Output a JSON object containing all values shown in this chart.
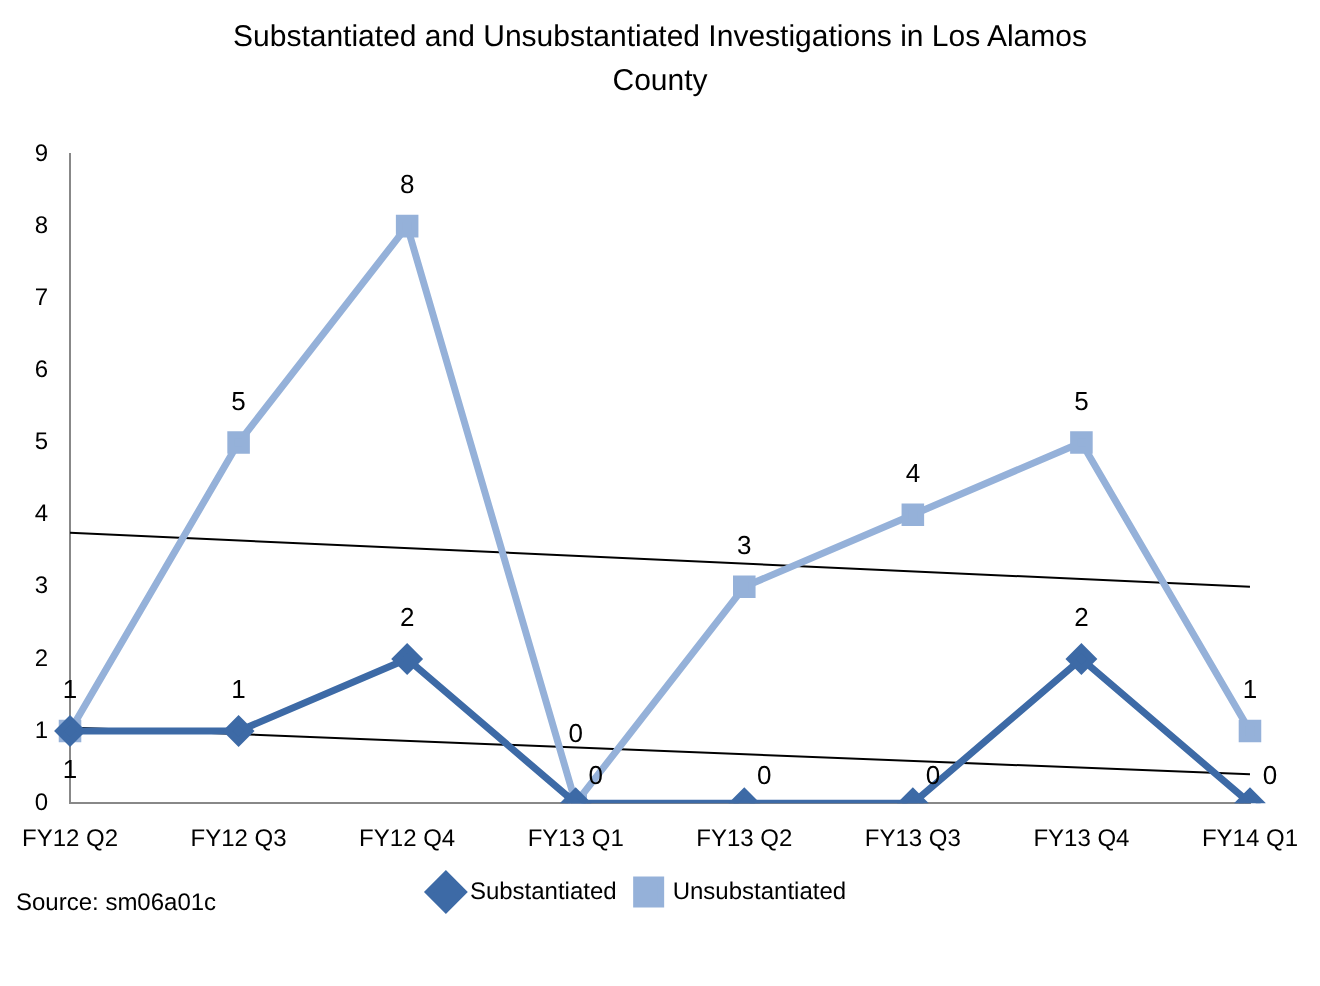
{
  "chart_data": {
    "type": "line",
    "title": "Substantiated and Unsubstantiated Investigations in Los Alamos County",
    "categories": [
      "FY12 Q2",
      "FY12 Q3",
      "FY12 Q4",
      "FY13 Q1",
      "FY13 Q2",
      "FY13 Q3",
      "FY13 Q4",
      "FY14 Q1"
    ],
    "series": [
      {
        "name": "Substantiated",
        "color": "#3d6aa6",
        "marker": "diamond",
        "values": [
          1,
          1,
          2,
          0,
          0,
          0,
          2,
          0
        ],
        "value_labels": [
          "1",
          "1",
          "2",
          "0",
          "0",
          "0",
          "2",
          "0"
        ]
      },
      {
        "name": "Unsubstantiated",
        "color": "#95b1d9",
        "marker": "square",
        "values": [
          1,
          5,
          8,
          0,
          3,
          4,
          5,
          1
        ],
        "value_labels": [
          "1",
          "5",
          "8",
          "0",
          "3",
          "4",
          "5",
          "1"
        ]
      },
      {
        "type": "line",
        "color": "#000000",
        "marker": "none",
        "x": [
          "FY12 Q2",
          "FY14 Q1"
        ],
        "values": [
          3.75,
          3.0
        ]
      },
      {
        "type": "line",
        "color": "#000000",
        "marker": "none",
        "x": [
          "FY12 Q2",
          "FY14 Q1"
        ],
        "values": [
          1.05,
          0.4
        ]
      }
    ],
    "ylim": [
      0,
      9
    ],
    "yticks": [
      0,
      1,
      2,
      3,
      4,
      5,
      6,
      7,
      8,
      9
    ],
    "grid": false,
    "legend": "bottom",
    "annotations": [
      "Source:  sm06a01c"
    ]
  }
}
